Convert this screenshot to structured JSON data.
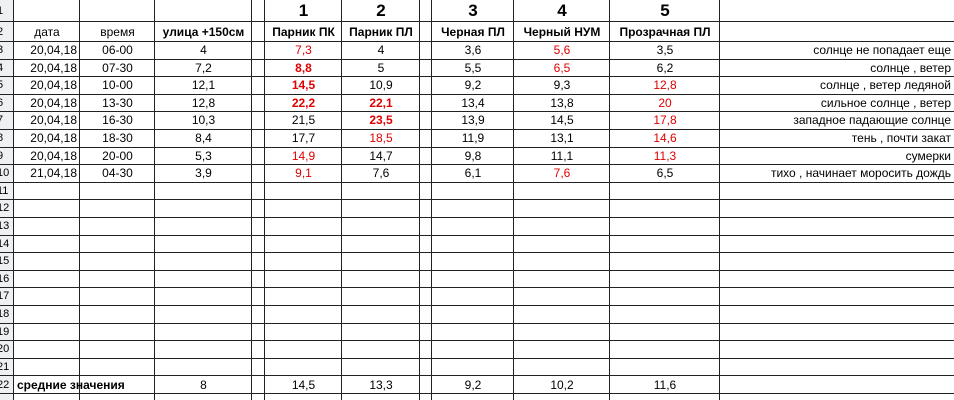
{
  "row_numbers": [
    "1",
    "2",
    "3",
    "4",
    "5",
    "6",
    "7",
    "8",
    "9",
    "10",
    "11",
    "12",
    "13",
    "14",
    "15",
    "16",
    "17",
    "18",
    "19",
    "20",
    "21",
    "22"
  ],
  "header_numbers": [
    "1",
    "2",
    "3",
    "4",
    "5"
  ],
  "column_headers": [
    {
      "text": "дата"
    },
    {
      "text": "время"
    },
    {
      "text": "улица +150см",
      "bold": true
    },
    {
      "text": "Парник ПК",
      "bold": true
    },
    {
      "text": "Парник ПЛ",
      "bold": true
    },
    {
      "text": "Черная ПЛ",
      "bold": true
    },
    {
      "text": "Черный НУМ",
      "bold": true
    },
    {
      "text": "Прозрачная ПЛ",
      "bold": true
    }
  ],
  "rows": [
    {
      "cells": [
        {
          "text": "20,04,18"
        },
        {
          "text": "06-00"
        },
        {
          "text": "4"
        },
        {
          "text": "7,3",
          "color": "#e00000"
        },
        {
          "text": "4"
        },
        {
          "text": "3,6"
        },
        {
          "text": "5,6",
          "color": "#e00000"
        },
        {
          "text": "3,5"
        },
        {
          "text": "солнце не попадает еще"
        }
      ]
    },
    {
      "cells": [
        {
          "text": "20,04,18"
        },
        {
          "text": "07-30"
        },
        {
          "text": "7,2"
        },
        {
          "text": "8,8",
          "color": "#e00000",
          "bold": true
        },
        {
          "text": "5"
        },
        {
          "text": "5,5"
        },
        {
          "text": "6,5",
          "color": "#e00000"
        },
        {
          "text": "6,2"
        },
        {
          "text": "солнце , ветер"
        }
      ]
    },
    {
      "cells": [
        {
          "text": "20,04,18"
        },
        {
          "text": "10-00"
        },
        {
          "text": "12,1"
        },
        {
          "text": "14,5",
          "color": "#e00000",
          "bold": true
        },
        {
          "text": "10,9"
        },
        {
          "text": "9,2"
        },
        {
          "text": "9,3"
        },
        {
          "text": "12,8",
          "color": "#e00000"
        },
        {
          "text": "солнце , ветер ледяной"
        }
      ]
    },
    {
      "cells": [
        {
          "text": "20,04,18"
        },
        {
          "text": "13-30"
        },
        {
          "text": "12,8"
        },
        {
          "text": "22,2",
          "color": "#e00000",
          "bold": true
        },
        {
          "text": "22,1",
          "color": "#e00000",
          "bold": true
        },
        {
          "text": "13,4"
        },
        {
          "text": "13,8"
        },
        {
          "text": "20",
          "color": "#e00000"
        },
        {
          "text": "сильное солнце , ветер"
        }
      ]
    },
    {
      "cells": [
        {
          "text": "20,04,18"
        },
        {
          "text": "16-30"
        },
        {
          "text": "10,3"
        },
        {
          "text": "21,5"
        },
        {
          "text": "23,5",
          "color": "#e00000",
          "bold": true
        },
        {
          "text": "13,9"
        },
        {
          "text": "14,5"
        },
        {
          "text": "17,8",
          "color": "#e00000"
        },
        {
          "text": "западное падающие солнце"
        }
      ]
    },
    {
      "cells": [
        {
          "text": "20,04,18"
        },
        {
          "text": "18-30"
        },
        {
          "text": "8,4"
        },
        {
          "text": "17,7"
        },
        {
          "text": "18,5",
          "color": "#e00000"
        },
        {
          "text": "11,9"
        },
        {
          "text": "13,1"
        },
        {
          "text": "14,6",
          "color": "#e00000"
        },
        {
          "text": "тень , почти закат"
        }
      ]
    },
    {
      "cells": [
        {
          "text": "20,04,18"
        },
        {
          "text": "20-00"
        },
        {
          "text": "5,3"
        },
        {
          "text": "14,9",
          "color": "#e00000"
        },
        {
          "text": "14,7"
        },
        {
          "text": "9,8"
        },
        {
          "text": "11,1"
        },
        {
          "text": "11,3",
          "color": "#e00000"
        },
        {
          "text": "сумерки"
        }
      ]
    },
    {
      "cells": [
        {
          "text": "21,04,18"
        },
        {
          "text": "04-30"
        },
        {
          "text": "3,9"
        },
        {
          "text": "9,1",
          "color": "#e00000"
        },
        {
          "text": "7,6"
        },
        {
          "text": "6,1"
        },
        {
          "text": "7,6",
          "color": "#e00000"
        },
        {
          "text": "6,5"
        },
        {
          "text": "тихо , начинает моросить дождь"
        }
      ]
    }
  ],
  "averages": {
    "label": "средние значения",
    "values": [
      "8",
      "14,5",
      "13,3",
      "9,2",
      "10,2",
      "11,6"
    ]
  }
}
